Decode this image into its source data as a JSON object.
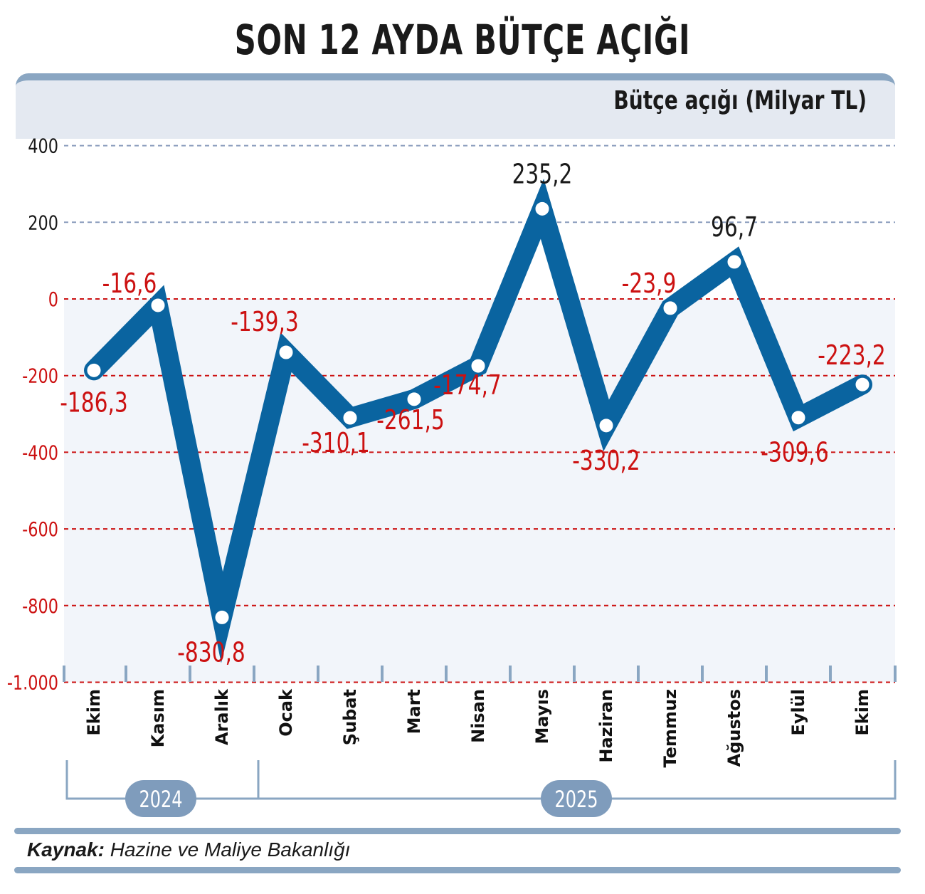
{
  "header": {
    "title": "SON 12 AYDA BÜTÇE AÇIĞI",
    "unit_label": "Bütçe açığı (Milyar TL)"
  },
  "footer": {
    "source_label": "Kaynak:",
    "source_value": "Hazine ve Maliye Bakanlığı"
  },
  "colors": {
    "line": "#0a64a0",
    "negative": "#cc1111",
    "positive": "#1a1a1a",
    "accent": "#8aa6c2",
    "panel_bg": "#f2f5fa",
    "header_bg": "#e4e9f1"
  },
  "chart_data": {
    "type": "line",
    "title": "SON 12 AYDA BÜTÇE AÇIĞI",
    "ylabel": "Bütçe açığı (Milyar TL)",
    "xlabel": "",
    "categories": [
      "Ekim",
      "Kasım",
      "Aralık",
      "Ocak",
      "Şubat",
      "Mart",
      "Nisan",
      "Mayıs",
      "Haziran",
      "Temmuz",
      "Ağustos",
      "Eylül",
      "Ekim"
    ],
    "year_groups": [
      {
        "label": "2024",
        "months": [
          "Ekim",
          "Kasım",
          "Aralık"
        ]
      },
      {
        "label": "2025",
        "months": [
          "Ocak",
          "Şubat",
          "Mart",
          "Nisan",
          "Mayıs",
          "Haziran",
          "Temmuz",
          "Ağustos",
          "Eylül",
          "Ekim"
        ]
      }
    ],
    "series": [
      {
        "name": "Bütçe açığı",
        "values": [
          -186.3,
          -16.6,
          -830.8,
          -139.3,
          -310.1,
          -261.5,
          -174.7,
          235.2,
          -330.2,
          -23.9,
          96.7,
          -309.6,
          -223.2
        ]
      }
    ],
    "value_labels": [
      "-186,3",
      "-16,6",
      "-830,8",
      "-139,3",
      "-310,1",
      "-261,5",
      "-174,7",
      "235,2",
      "-330,2",
      "-23,9",
      "96,7",
      "-309,6",
      "-223,2"
    ],
    "yticks": [
      400,
      200,
      0,
      -200,
      -400,
      -600,
      -800,
      -1000
    ],
    "ytick_labels": [
      "400",
      "200",
      "0",
      "-200",
      "-400",
      "-600",
      "-800",
      "-1.000"
    ],
    "ylim": [
      -1000,
      400
    ],
    "grid": true,
    "source": "Kaynak: Hazine ve Maliye Bakanlığı"
  }
}
